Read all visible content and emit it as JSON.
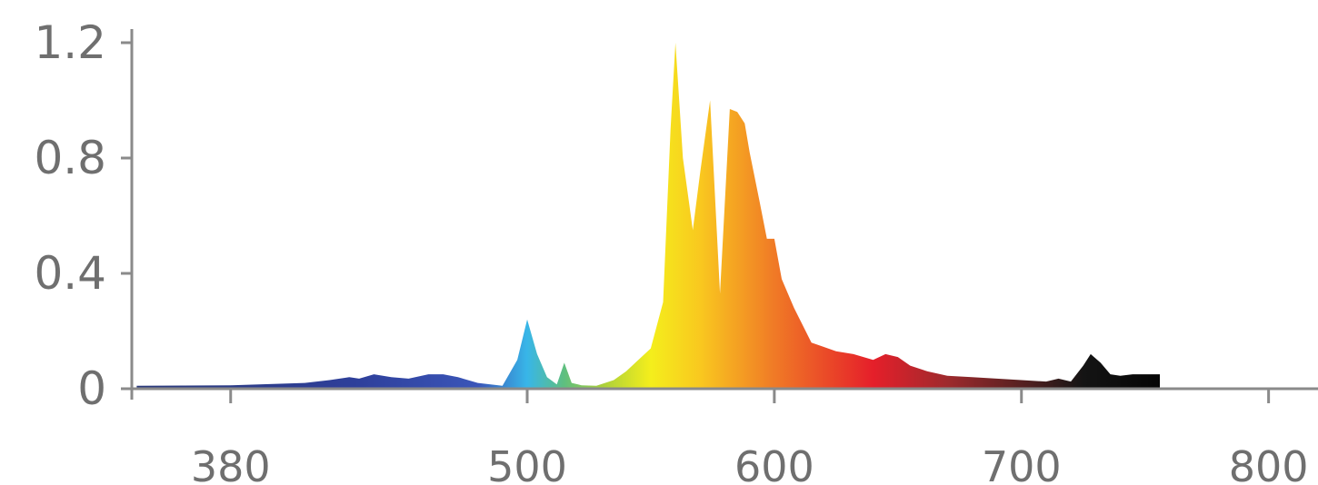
{
  "chart_data": {
    "type": "area",
    "title": "",
    "xlabel": "",
    "ylabel": "",
    "xlim": [
      340,
      820
    ],
    "ylim": [
      0,
      1.2
    ],
    "grid": false,
    "legend": "none",
    "x_ticks": [
      {
        "value": 380,
        "label": "380"
      },
      {
        "value": 500,
        "label": "500"
      },
      {
        "value": 600,
        "label": "600"
      },
      {
        "value": 700,
        "label": "700"
      },
      {
        "value": 800,
        "label": "800"
      }
    ],
    "y_ticks": [
      {
        "value": 0,
        "label": "0"
      },
      {
        "value": 0.4,
        "label": "0.4"
      },
      {
        "value": 0.8,
        "label": "0.8"
      },
      {
        "value": 1.2,
        "label": "1.2"
      }
    ],
    "series": [
      {
        "x": [
          342,
          380,
          410,
          420,
          428,
          432,
          438,
          445,
          452,
          460,
          466,
          472,
          480,
          490,
          496,
          500,
          504,
          508,
          512,
          515,
          518,
          522,
          528,
          535,
          540,
          545,
          550,
          555,
          558,
          560,
          563,
          567,
          570,
          574,
          578,
          582,
          585,
          588,
          590,
          594,
          597,
          600,
          603,
          608,
          615,
          625,
          632,
          640,
          645,
          650,
          655,
          662,
          670,
          680,
          690,
          700,
          710,
          715,
          720,
          725,
          728,
          732,
          736,
          740,
          745,
          750,
          756
        ],
        "values": [
          0.01,
          0.012,
          0.02,
          0.03,
          0.04,
          0.035,
          0.05,
          0.04,
          0.035,
          0.05,
          0.05,
          0.04,
          0.02,
          0.01,
          0.1,
          0.24,
          0.12,
          0.04,
          0.015,
          0.09,
          0.02,
          0.012,
          0.01,
          0.03,
          0.06,
          0.1,
          0.14,
          0.3,
          0.9,
          1.2,
          0.8,
          0.55,
          0.75,
          1.0,
          0.33,
          0.97,
          0.96,
          0.92,
          0.82,
          0.65,
          0.52,
          0.52,
          0.38,
          0.28,
          0.16,
          0.13,
          0.12,
          0.1,
          0.12,
          0.11,
          0.08,
          0.06,
          0.045,
          0.04,
          0.035,
          0.03,
          0.025,
          0.035,
          0.025,
          0.08,
          0.12,
          0.09,
          0.05,
          0.045,
          0.05,
          0.05,
          0.05
        ],
        "fill": "wavelength-spectrum"
      }
    ],
    "gradient_stops": [
      {
        "wavelength": 342,
        "color": "#2b3a7a"
      },
      {
        "wavelength": 430,
        "color": "#2e3f9a"
      },
      {
        "wavelength": 480,
        "color": "#3a55b8"
      },
      {
        "wavelength": 500,
        "color": "#38b6e8"
      },
      {
        "wavelength": 515,
        "color": "#5fbf7f"
      },
      {
        "wavelength": 530,
        "color": "#a8cf3c"
      },
      {
        "wavelength": 550,
        "color": "#f4ee1c"
      },
      {
        "wavelength": 570,
        "color": "#f9c81f"
      },
      {
        "wavelength": 600,
        "color": "#f07a26"
      },
      {
        "wavelength": 640,
        "color": "#e51f2a"
      },
      {
        "wavelength": 670,
        "color": "#9e2a2d"
      },
      {
        "wavelength": 705,
        "color": "#4a1f1f"
      },
      {
        "wavelength": 725,
        "color": "#141414"
      },
      {
        "wavelength": 756,
        "color": "#050505"
      }
    ]
  }
}
